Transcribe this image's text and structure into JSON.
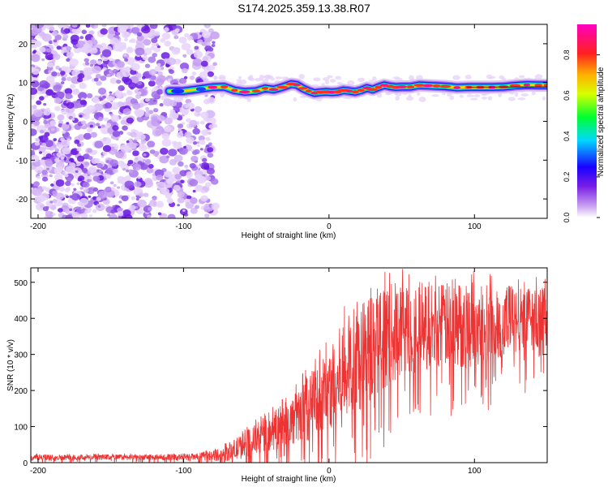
{
  "title": "S174.2025.359.13.38.R07",
  "chart_data": [
    {
      "type": "heatmap",
      "xlabel": "Height of straight line (km)",
      "ylabel": "Frequency (Hz)",
      "xlim": [
        -205,
        150
      ],
      "ylim": [
        -25,
        25
      ],
      "x_ticks": [
        -200,
        -100,
        0,
        100
      ],
      "y_ticks": [
        20,
        10,
        0,
        -10,
        -20
      ],
      "noise_region_x": [
        -205,
        -78
      ],
      "ridge": {
        "x": [
          -110,
          -100,
          -90,
          -80,
          -72,
          -65,
          -58,
          -50,
          -44,
          -38,
          -32,
          -26,
          -22,
          -18,
          -14,
          -10,
          -6,
          -2,
          2,
          6,
          10,
          14,
          18,
          22,
          26,
          30,
          34,
          38,
          42,
          46,
          50,
          56,
          62,
          68,
          74,
          80,
          88,
          96,
          104,
          112,
          120,
          128,
          136,
          144,
          150
        ],
        "y": [
          7.8,
          7.8,
          8.3,
          8.8,
          8.9,
          8.0,
          7.6,
          7.8,
          8.5,
          8.2,
          8.8,
          9.6,
          9.4,
          8.5,
          7.8,
          7.3,
          7.5,
          7.6,
          7.5,
          7.6,
          8.0,
          7.8,
          7.6,
          8.0,
          8.6,
          8.2,
          8.8,
          9.3,
          9.0,
          8.8,
          8.9,
          8.9,
          9.3,
          9.2,
          9.1,
          9.0,
          8.7,
          8.8,
          8.8,
          8.8,
          8.9,
          9.2,
          9.4,
          9.3,
          9.3
        ]
      },
      "colorbar": {
        "label": "Normalized spectral amplitude",
        "ticks": [
          "0.0",
          "0.2",
          "0.4",
          "0.6",
          "0.8"
        ],
        "range": [
          0,
          0.95
        ]
      }
    },
    {
      "type": "line",
      "xlabel": "Height of straight line (km)",
      "ylabel": "SNR (10 * v/v)",
      "xlim": [
        -205,
        150
      ],
      "ylim": [
        0,
        540
      ],
      "x_ticks": [
        -200,
        -100,
        0,
        100
      ],
      "y_ticks": [
        0,
        100,
        200,
        300,
        400,
        500
      ],
      "series": [
        {
          "name": "SNR",
          "color": "#ee3333",
          "x": [
            -205,
            -180,
            -150,
            -120,
            -90,
            -75,
            -65,
            -55,
            -45,
            -35,
            -25,
            -15,
            -5,
            5,
            15,
            25,
            35,
            45,
            55,
            65,
            80,
            95,
            110,
            125,
            140,
            150
          ],
          "y_center": [
            15,
            15,
            15,
            15,
            16,
            22,
            35,
            55,
            75,
            95,
            115,
            150,
            185,
            220,
            270,
            310,
            340,
            360,
            370,
            375,
            380,
            380,
            385,
            395,
            400,
            405
          ],
          "y_spread": [
            8,
            8,
            8,
            8,
            10,
            18,
            30,
            40,
            50,
            60,
            70,
            90,
            110,
            140,
            150,
            150,
            140,
            140,
            130,
            120,
            120,
            120,
            110,
            100,
            90,
            80
          ]
        }
      ]
    }
  ]
}
